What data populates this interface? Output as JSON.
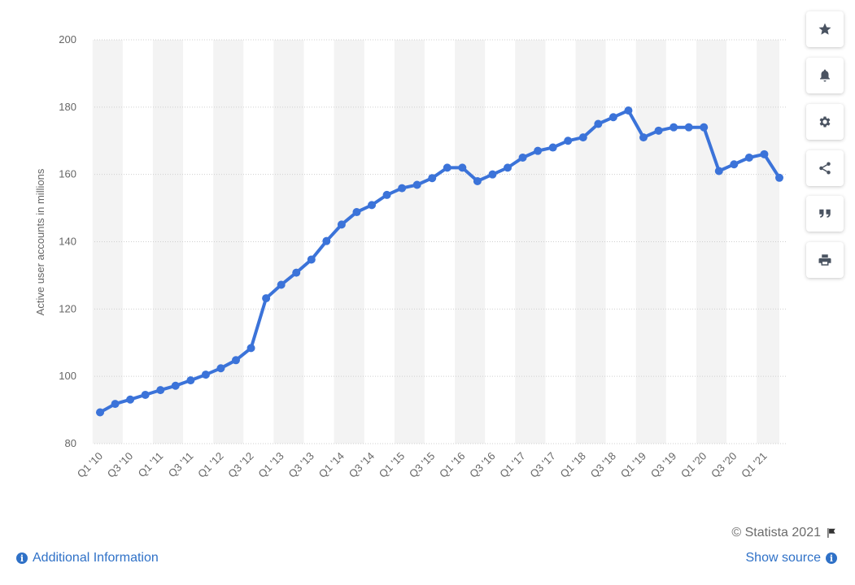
{
  "chart_data": {
    "type": "line",
    "title": "",
    "xlabel": "",
    "ylabel": "Active user accounts in millions",
    "ylim": [
      80,
      200
    ],
    "yticks": [
      80,
      100,
      120,
      140,
      160,
      180,
      200
    ],
    "grid": true,
    "x": [
      "Q1 '10",
      "Q2 '10",
      "Q3 '10",
      "Q4 '10",
      "Q1 '11",
      "Q2 '11",
      "Q3 '11",
      "Q4 '11",
      "Q1 '12",
      "Q2 '12",
      "Q3 '12",
      "Q4 '12",
      "Q1 '13",
      "Q2 '13",
      "Q3 '13",
      "Q4 '13",
      "Q1 '14",
      "Q2 '14",
      "Q3 '14",
      "Q4 '14",
      "Q1 '15",
      "Q2 '15",
      "Q3 '15",
      "Q4 '15",
      "Q1 '16",
      "Q2 '16",
      "Q3 '16",
      "Q4 '16",
      "Q1 '17",
      "Q2 '17",
      "Q3 '17",
      "Q4 '17",
      "Q1 '18",
      "Q2 '18",
      "Q3 '18",
      "Q4 '18",
      "Q1 '19",
      "Q2 '19",
      "Q3 '19",
      "Q4 '19",
      "Q1 '20",
      "Q2 '20",
      "Q3 '20",
      "Q4 '20",
      "Q1 '21",
      "Q2 '21"
    ],
    "xtick_labels": [
      "Q1 '10",
      "Q3 '10",
      "Q1 '11",
      "Q3 '11",
      "Q1 '12",
      "Q3 '12",
      "Q1 '13",
      "Q3 '13",
      "Q1 '14",
      "Q3 '14",
      "Q1 '15",
      "Q3 '15",
      "Q1 '16",
      "Q3 '16",
      "Q1 '17",
      "Q3 '17",
      "Q1 '18",
      "Q3 '18",
      "Q1 '19",
      "Q3 '19",
      "Q1 '20",
      "Q3 '20",
      "Q1 '21"
    ],
    "series": [
      {
        "name": "",
        "color": "#3b73d9",
        "values": [
          89.3,
          91.8,
          93.1,
          94.5,
          95.9,
          97.2,
          98.8,
          100.5,
          102.4,
          104.8,
          108.4,
          123.2,
          127.2,
          130.8,
          134.7,
          140.2,
          145.1,
          148.8,
          150.9,
          153.9,
          155.9,
          156.9,
          158.9,
          162.0,
          162.0,
          158.0,
          160.0,
          162.0,
          165.0,
          167.0,
          168.0,
          170.0,
          171.0,
          175.0,
          177.0,
          179.0,
          171.0,
          173.0,
          174.0,
          174.0,
          174.0,
          161.0,
          163.0,
          165.0,
          166.0,
          159.0
        ]
      }
    ]
  },
  "side_buttons": [
    {
      "icon": "star-icon"
    },
    {
      "icon": "bell-icon"
    },
    {
      "icon": "gear-icon"
    },
    {
      "icon": "share-icon"
    },
    {
      "icon": "quote-icon"
    },
    {
      "icon": "print-icon"
    }
  ],
  "footer": {
    "copyright": "© Statista 2021",
    "additional_info": "Additional Information",
    "show_source": "Show source"
  },
  "colors": {
    "line": "#3b73d9",
    "band": "#f3f3f3",
    "link": "#2f71c7"
  }
}
